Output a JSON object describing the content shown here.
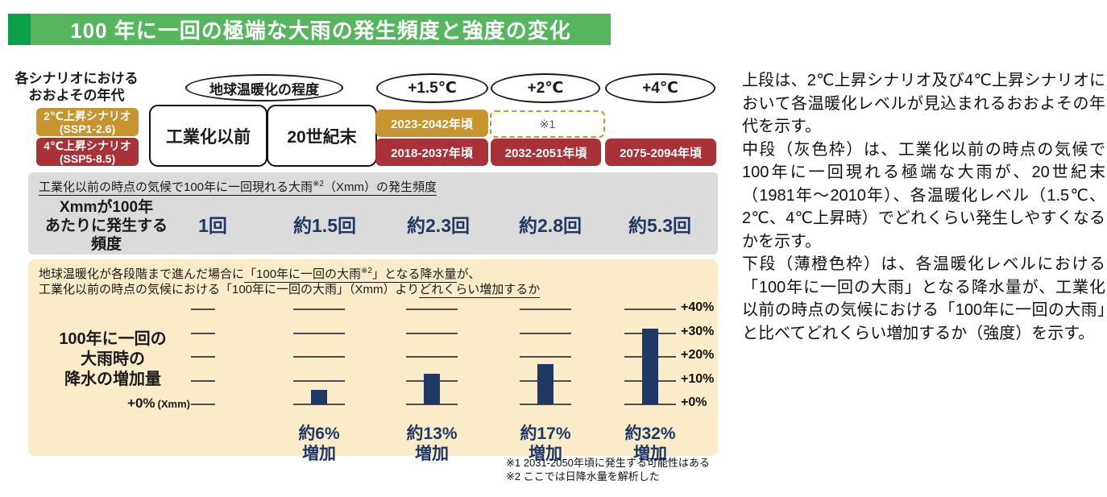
{
  "title": "100 年に一回の極端な大雨の発生頻度と強度の変化",
  "colors": {
    "title_green": "#55B65E",
    "title_green_dark": "#0CA04B",
    "scenario_2c_orange": "#C79430",
    "scenario_4c_red": "#A93138",
    "navy": "#1F3864",
    "gray_panel": "#DBDBDB",
    "cream_panel": "#FAECC9"
  },
  "scenario_legend": {
    "heading_line1": "各シナリオにおける",
    "heading_line2": "おおよその年代",
    "scenarios": [
      {
        "name_line": "2℃上昇シナリオ",
        "ssp_line": "(SSP1-2.6)"
      },
      {
        "name_line": "4℃上昇シナリオ",
        "ssp_line": "(SSP5-8.5)"
      }
    ]
  },
  "warming_header": {
    "degree_label": "地球温暖化の程度",
    "periods": [
      "工業化以前",
      "20世紀末"
    ],
    "levels": [
      "+1.5℃",
      "+2℃",
      "+4℃"
    ],
    "scenario_2c_years": [
      "2023-2042年頃",
      "※1"
    ],
    "scenario_4c_years": [
      "2018-2037年頃",
      "2032-2051年頃",
      "2075-2094年頃"
    ]
  },
  "frequency_panel": {
    "heading_main": "工業化以前の時点の気候で100年に一回現れる大雨",
    "heading_sup": "※2",
    "heading_tail": "（Xmm）の発生頻度",
    "row_label_lines": [
      "Xmmが100年",
      "あたりに発生する",
      "頻度"
    ]
  },
  "intensity_panel": {
    "heading_line1_pre": "地球温暖化が各段階まで進んだ場合に",
    "heading_line1_u1": "「100年に一回の大雨",
    "heading_line1_sup": "※2",
    "heading_line1_u2": "」となる降水量",
    "heading_line1_tail": "が、",
    "heading_line2_pre": "工業化以前の時点の気候における「100年に一回の大雨」（Xmm）より",
    "heading_line2_u": "どれくらい増加するか",
    "row_label_lines": [
      "100年に一回の",
      "大雨時の",
      "降水の増加量"
    ],
    "zero_label": "+0%",
    "zero_unit": "(Xmm)"
  },
  "chart_data": [
    {
      "type": "table",
      "title": "工業化以前の時点の気候で100年に一回現れる大雨※2（Xmm）の発生頻度",
      "row_label": "Xmmが100年あたりに発生する頻度",
      "categories": [
        "工業化以前",
        "20世紀末",
        "+1.5℃",
        "+2℃",
        "+4℃"
      ],
      "values": [
        "1回",
        "約1.5回",
        "約2.3回",
        "約2.8回",
        "約5.3回"
      ],
      "values_numeric": [
        1,
        1.5,
        2.3,
        2.8,
        5.3
      ]
    },
    {
      "type": "bar",
      "title": "100年に一回の大雨時の降水の増加量",
      "categories": [
        "工業化以前",
        "20世紀末",
        "+1.5℃",
        "+2℃",
        "+4℃"
      ],
      "values": [
        0,
        6,
        13,
        17,
        32
      ],
      "unit": "%",
      "bar_label_lines": [
        [],
        [
          "約6%",
          "増加"
        ],
        [
          "約13%",
          "増加"
        ],
        [
          "約17%",
          "増加"
        ],
        [
          "約32%",
          "増加"
        ]
      ],
      "ytick_labels": [
        "+0%",
        "+10%",
        "+20%",
        "+30%",
        "+40%"
      ],
      "ylim": [
        0,
        40
      ],
      "grid": "per-column ticks",
      "legend": "none",
      "bar_color": "#1F3864"
    }
  ],
  "footnotes": [
    "※1 2031-2050年頃に発生する可能性はある",
    "※2 ここでは日降水量を解析した"
  ],
  "description": [
    "上段は、2℃上昇シナリオ及び4℃上昇シナリオにおいて各温暖化レベルが見込まれるおおよその年代を示す。",
    "中段（灰色枠）は、工業化以前の時点の気候で100年に一回現れる極端な大雨が、20世紀末（1981年～2010年）、各温暖化レベル（1.5℃、2℃、4℃上昇時）でどれくらい発生しやすくなるかを示す。",
    "下段（薄橙色枠）は、各温暖化レベルにおける「100年に一回の大雨」となる降水量が、工業化以前の時点の気候における「100年に一回の大雨」と比べてどれくらい増加するか（強度）を示す。"
  ]
}
